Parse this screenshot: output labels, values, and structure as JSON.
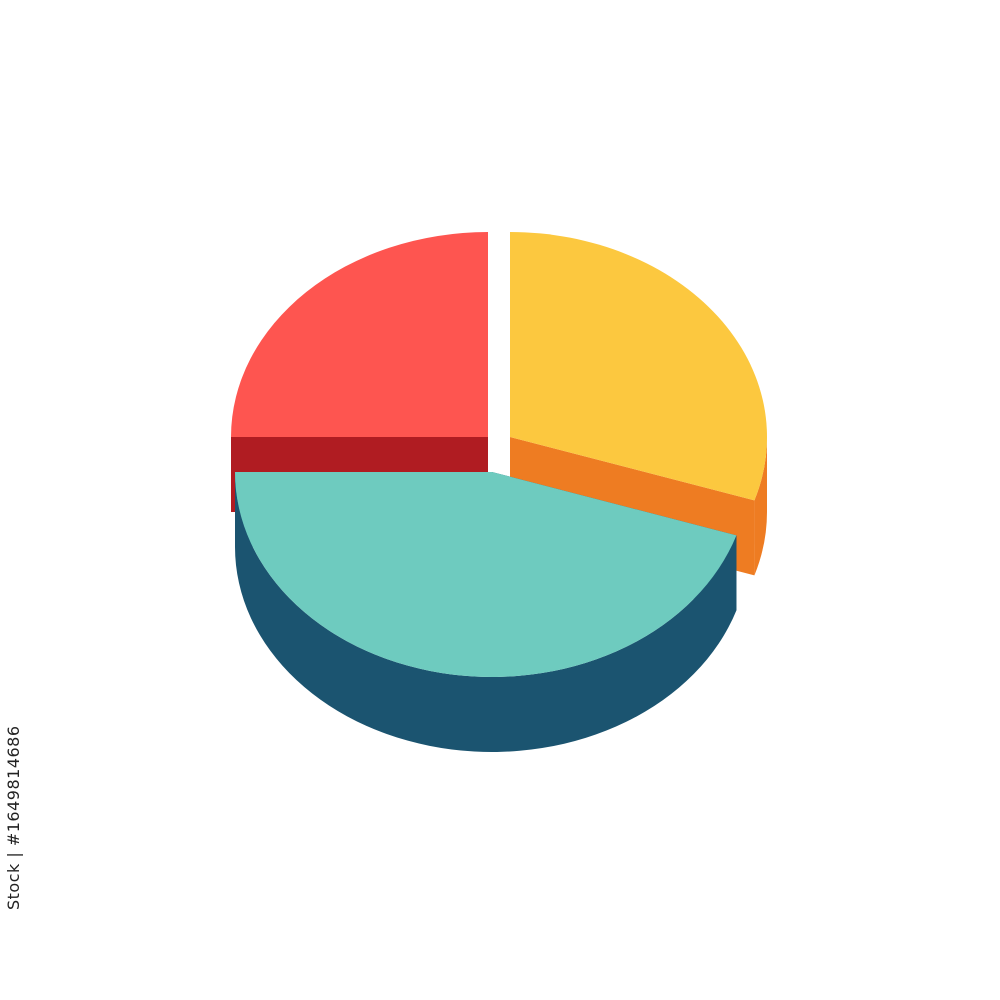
{
  "chart_data": {
    "type": "pie",
    "style": "3d-exploded",
    "title": "",
    "slices": [
      {
        "value": 25,
        "color": "#fe5550",
        "side_color": "#b01c22"
      },
      {
        "value": 30,
        "color": "#fcc83f",
        "side_color": "#ee7c22"
      },
      {
        "value": 45,
        "color": "#6ecbbf",
        "side_color": "#1b5470",
        "cut_color": "#3a8a99"
      }
    ],
    "labels_shown": false,
    "legend": "none"
  },
  "watermark": {
    "text": "Adobe Stock",
    "stock_id": "Stock | #1649814686"
  }
}
